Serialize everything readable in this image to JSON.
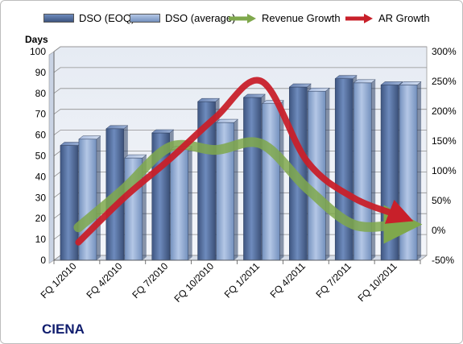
{
  "chart_data": {
    "type": "bar",
    "categories": [
      "FQ 1/2010",
      "FQ 4/2010",
      "FQ 7/2010",
      "FQ 10/2010",
      "FQ 1/2011",
      "FQ 4/2011",
      "FQ 7/2011",
      "FQ 10/2011"
    ],
    "series": [
      {
        "name": "DSO (EOQ)",
        "type": "bar",
        "axis": "left",
        "values": [
          55,
          63,
          61,
          76,
          78,
          83,
          87,
          84
        ],
        "color": "#4a6391"
      },
      {
        "name": "DSO (average)",
        "type": "bar",
        "axis": "left",
        "values": [
          58,
          49,
          53,
          66,
          75,
          81,
          85,
          84
        ],
        "color": "#8fa9d3"
      },
      {
        "name": "Revenue Growth",
        "type": "line",
        "axis": "right",
        "values": [
          0.05,
          0.7,
          1.4,
          1.35,
          1.45,
          0.7,
          0.1,
          0.1
        ],
        "unit": "percent-fraction",
        "color": "#7fa84c"
      },
      {
        "name": "AR Growth",
        "type": "line",
        "axis": "right",
        "values": [
          -0.2,
          0.55,
          1.2,
          1.9,
          2.5,
          1.15,
          0.55,
          0.25
        ],
        "unit": "percent-fraction",
        "color": "#c8202a"
      }
    ],
    "ylabel": "Days",
    "ylim": [
      0,
      100
    ],
    "yticks": [
      0,
      10,
      20,
      30,
      40,
      50,
      60,
      70,
      80,
      90,
      100
    ],
    "y2lim": [
      -0.5,
      3.0
    ],
    "y2ticks": [
      "-50%",
      "0%",
      "50%",
      "100%",
      "150%",
      "200%",
      "250%",
      "300%"
    ],
    "grid": true,
    "legend_position": "top",
    "label": "CIENA"
  }
}
